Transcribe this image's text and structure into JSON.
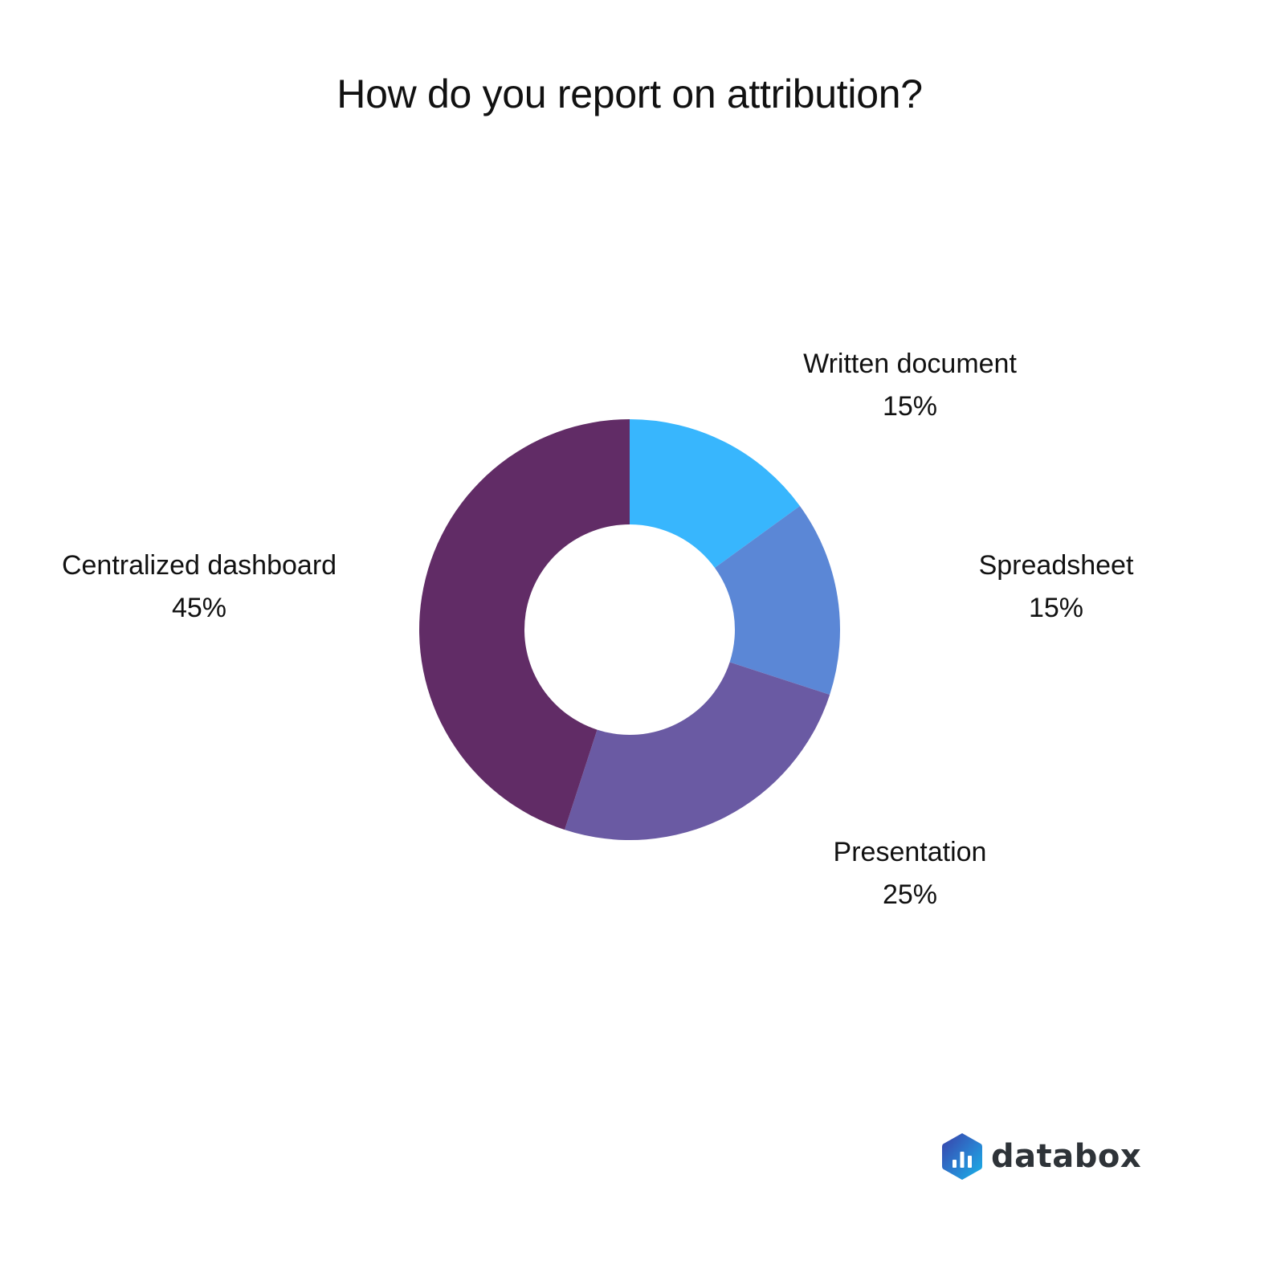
{
  "title": "How do you report on attribution?",
  "chart_data": {
    "type": "pie",
    "variant": "donut",
    "title": "How do you report on attribution?",
    "categories": [
      "Written document",
      "Spreadsheet",
      "Presentation",
      "Centralized dashboard"
    ],
    "values": [
      15,
      15,
      25,
      45
    ],
    "value_labels": [
      "15%",
      "15%",
      "25%",
      "45%"
    ],
    "colors": [
      "#38B6FD",
      "#5B87D6",
      "#6A5AA3",
      "#612C66"
    ],
    "start_angle": "12 o'clock",
    "direction": "clockwise",
    "legend": "none (direct labels)"
  },
  "labels": [
    {
      "name": "Written document",
      "value": "15%"
    },
    {
      "name": "Spreadsheet",
      "value": "15%"
    },
    {
      "name": "Presentation",
      "value": "25%"
    },
    {
      "name": "Centralized dashboard",
      "value": "45%"
    }
  ],
  "branding": {
    "logo_text": "databox",
    "icon": "databox-hexagon-bar-icon"
  }
}
